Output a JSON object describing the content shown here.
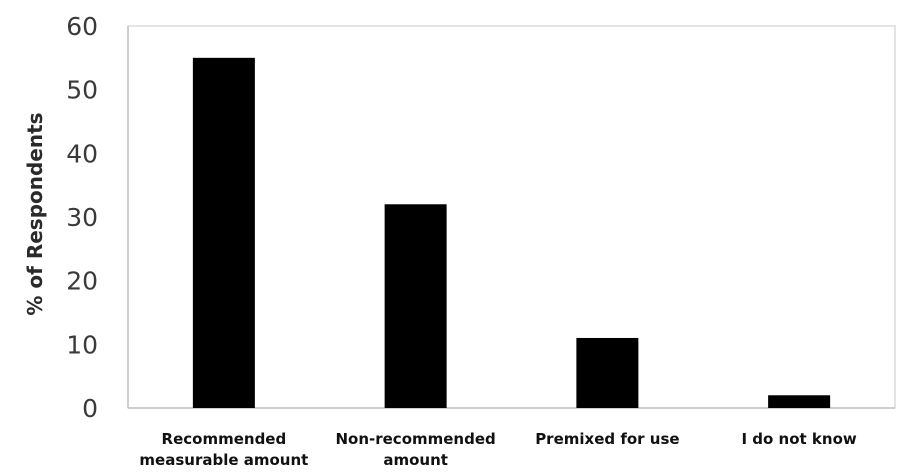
{
  "chart_data": {
    "type": "bar",
    "title": "",
    "xlabel": "",
    "ylabel": "% of Respondents",
    "categories": [
      [
        "Recommended",
        "measurable amount"
      ],
      [
        "Non-recommended",
        "amount"
      ],
      [
        "Premixed for use"
      ],
      [
        "I do not know"
      ]
    ],
    "values": [
      55,
      32,
      11,
      2
    ],
    "ylim": [
      0,
      60
    ],
    "yticks": [
      0,
      10,
      20,
      30,
      40,
      50,
      60
    ],
    "grid": false,
    "legend": "none",
    "colors": {
      "bar": "#000000",
      "axis": "#bdbdbd",
      "frame": "#c8c8c8"
    }
  }
}
